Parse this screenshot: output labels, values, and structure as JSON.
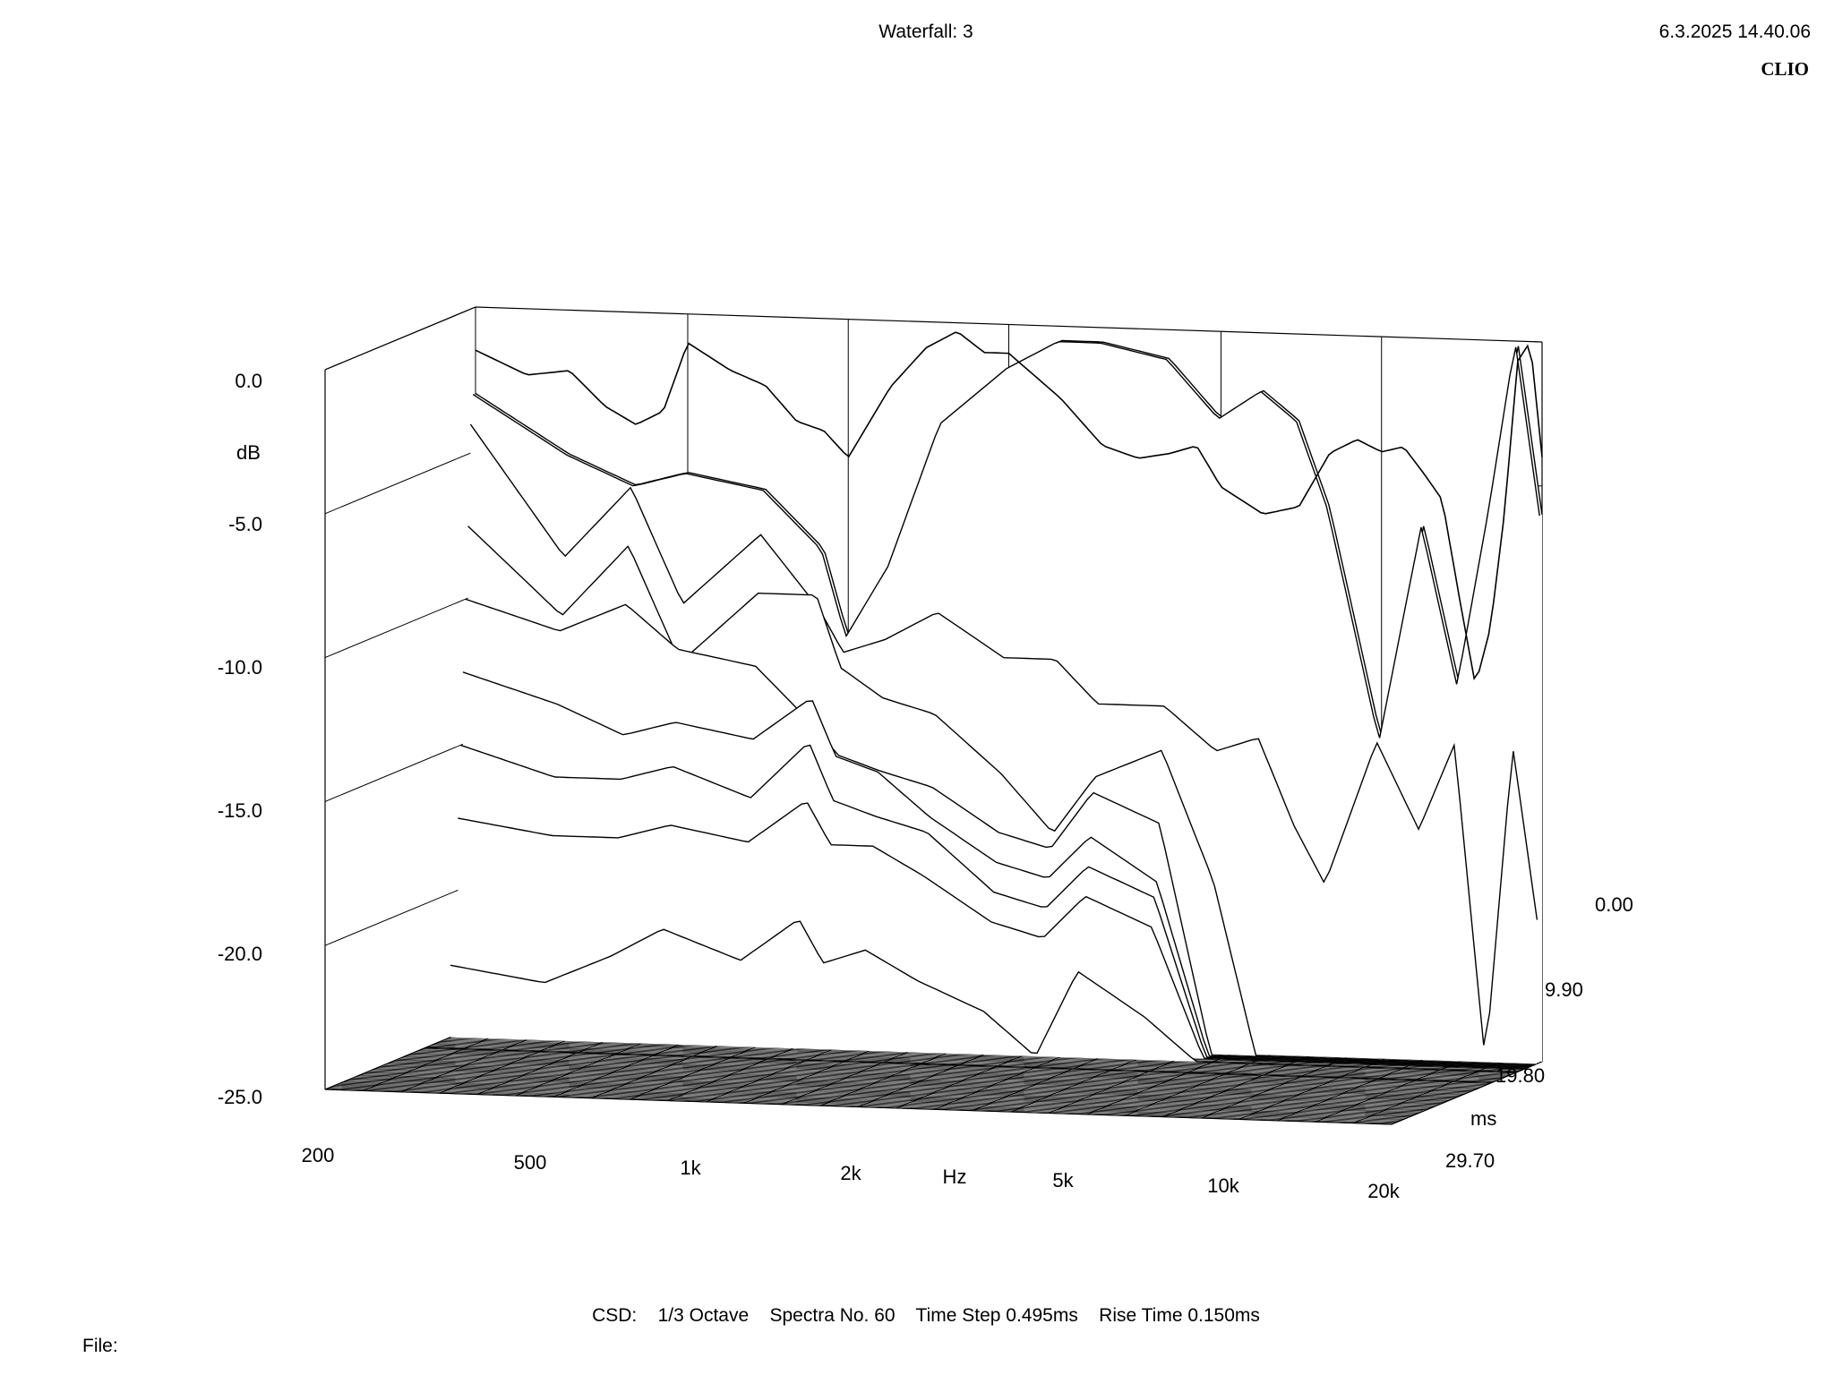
{
  "header": {
    "title": "Waterfall: 3",
    "datetime": "6.3.2025 14.40.06",
    "brand": "CLIO"
  },
  "footer": {
    "settings": "CSD:    1/3 Octave    Spectra No. 60    Time Step 0.495ms    Rise Time 0.150ms",
    "file_label": "File:"
  },
  "colors": {
    "line": "#000000",
    "background": "#ffffff"
  },
  "chart_data": {
    "type": "waterfall",
    "title": "Waterfall: 3",
    "x_axis": {
      "label": "Hz",
      "scale": "log",
      "range": [
        200,
        20000
      ],
      "tick_labels": [
        "200",
        "500",
        "1k",
        "2k",
        "5k",
        "10k",
        "20k"
      ],
      "tick_values": [
        200,
        500,
        1000,
        2000,
        5000,
        10000,
        20000
      ]
    },
    "y_axis": {
      "label": "dB",
      "range": [
        -25,
        0
      ],
      "tick_labels": [
        "0.0",
        "-5.0",
        "-10.0",
        "-15.0",
        "-20.0",
        "-25.0"
      ],
      "tick_values": [
        0,
        -5,
        -10,
        -15,
        -20,
        -25
      ]
    },
    "time_axis": {
      "label": "ms",
      "range": [
        0,
        29.7
      ],
      "tick_labels": [
        "0.00",
        "9.90",
        "19.80",
        "29.70"
      ],
      "tick_values": [
        0,
        9.9,
        19.8,
        29.7
      ]
    },
    "spectra_count": 60,
    "time_step_ms": 0.495,
    "rise_time_ms": 0.15,
    "smoothing": "1/3 Octave",
    "spectrum_t0": {
      "freq_hz": [
        200,
        250,
        300,
        350,
        400,
        450,
        500,
        600,
        700,
        800,
        900,
        1000,
        1200,
        1400,
        1600,
        1800,
        2000,
        2500,
        3000,
        3500,
        4000,
        4500,
        5000,
        6000,
        7000,
        8000,
        9000,
        10000,
        11000,
        12000,
        13000,
        14000,
        15000,
        16000,
        17000,
        18000,
        19000,
        20000
      ],
      "db": [
        -1.5,
        -2.3,
        -2.1,
        -3.3,
        -3.9,
        -3.4,
        -1.0,
        -1.9,
        -2.4,
        -3.6,
        -3.9,
        -4.8,
        -2.3,
        -0.9,
        -0.3,
        -1.0,
        -1.0,
        -2.5,
        -4.1,
        -4.5,
        -4.3,
        -4.0,
        -5.4,
        -6.3,
        -6.0,
        -4.1,
        -3.6,
        -4.0,
        -3.8,
        -4.7,
        -5.6,
        -9.0,
        -12.0,
        -10.0,
        -6.0,
        -0.7,
        0.0,
        -4.0
      ]
    },
    "cumulative_decay": [
      {
        "time_ms": 0.0,
        "freq_hz": [
          200,
          300,
          400,
          500,
          700,
          900,
          1000,
          1200,
          1500,
          2000,
          2500,
          3000,
          4000,
          5000,
          6000,
          7000,
          8000,
          10000,
          12000,
          14000,
          16000,
          18000,
          20000
        ],
        "db": [
          -3.0,
          -5.0,
          -6.0,
          -5.5,
          -6.0,
          -8.0,
          -11.0,
          -8.5,
          -3.5,
          -1.5,
          -0.5,
          -0.5,
          -1.0,
          -3.0,
          -2.0,
          -3.0,
          -6.0,
          -14.0,
          -6.5,
          -12.0,
          -6.0,
          0.0,
          -6.0
        ]
      },
      {
        "time_ms": 0.495,
        "freq_hz": [
          200,
          300,
          400,
          500,
          700,
          900,
          1000,
          1200,
          1500,
          2000,
          2500,
          3000,
          4000,
          5000,
          6000,
          7000,
          8000,
          10000,
          12000,
          14000,
          16000,
          18000,
          20000
        ],
        "db": [
          -3.0,
          -5.0,
          -6.0,
          -5.5,
          -6.0,
          -8.0,
          -11.0,
          -8.5,
          -3.5,
          -1.5,
          -0.5,
          -0.5,
          -1.0,
          -3.0,
          -2.0,
          -3.0,
          -6.0,
          -14.0,
          -6.5,
          -12.0,
          -6.0,
          0.0,
          -6.0
        ]
      },
      {
        "time_ms": 0.99,
        "freq_hz": [
          200,
          300,
          400,
          500,
          700,
          900,
          1000,
          1200,
          1500,
          2000,
          2500,
          3000,
          4000,
          5000,
          6000,
          7000,
          8000,
          10000,
          12000,
          14000,
          16000,
          18000,
          20000
        ],
        "db": [
          -4.0,
          -8.5,
          -6.0,
          -10.0,
          -7.5,
          -10.0,
          -11.5,
          -11.0,
          -10.0,
          -11.5,
          -11.5,
          -13.0,
          -13.0,
          -14.5,
          -14.0,
          -17.0,
          -19.0,
          -14.0,
          -17.0,
          -14.0,
          -25.0,
          -14.0,
          -20.0
        ]
      },
      {
        "time_ms": 1.485,
        "freq_hz": [
          200,
          300,
          400,
          500,
          700,
          900,
          1000,
          1200,
          1500,
          2000,
          2500,
          3000,
          4000,
          5000,
          6000,
          7000,
          8000,
          10000,
          12000,
          14000,
          16000,
          18000,
          20000
        ],
        "db": [
          -7.5,
          -10.5,
          -8.0,
          -12.0,
          -9.5,
          -9.5,
          -12.0,
          -13.0,
          -13.5,
          -15.5,
          -17.5,
          -15.5,
          -14.5,
          -19.0,
          -25.0,
          -25.0,
          -25.0,
          -25.0,
          -25.0,
          -25.0,
          -25.0,
          -25.0,
          -25.0
        ]
      },
      {
        "time_ms": 1.98,
        "freq_hz": [
          200,
          300,
          400,
          500,
          700,
          900,
          1000,
          1200,
          1500,
          2000,
          2500,
          3000,
          4000,
          5000,
          6000,
          7000,
          8000,
          10000,
          12000,
          14000,
          16000,
          18000,
          20000
        ],
        "db": [
          -10.0,
          -11.0,
          -10.0,
          -11.5,
          -12.0,
          -14.0,
          -15.0,
          -15.5,
          -16.0,
          -17.5,
          -18.0,
          -16.0,
          -17.0,
          -25.0,
          -25.0,
          -25.0,
          -25.0,
          -25.0,
          -25.0,
          -25.0,
          -25.0,
          -25.0,
          -25.0
        ]
      },
      {
        "time_ms": 2.475,
        "freq_hz": [
          200,
          300,
          400,
          500,
          700,
          900,
          1000,
          1200,
          1500,
          2000,
          2500,
          3000,
          4000,
          5000,
          6000,
          7000,
          8000,
          10000,
          12000,
          14000,
          16000,
          18000,
          20000
        ],
        "db": [
          -12.5,
          -13.5,
          -14.5,
          -14.0,
          -14.5,
          -13.0,
          -15.0,
          -15.5,
          -17.0,
          -18.5,
          -19.0,
          -17.5,
          -19.0,
          -25.0,
          -25.0,
          -25.0,
          -25.0,
          -25.0,
          -25.0,
          -25.0,
          -25.0,
          -25.0,
          -25.0
        ]
      },
      {
        "time_ms": 2.97,
        "freq_hz": [
          200,
          300,
          400,
          500,
          700,
          900,
          1000,
          1200,
          1500,
          2000,
          2500,
          3000,
          4000,
          5000,
          6000,
          7000,
          8000,
          10000,
          12000,
          14000,
          16000,
          18000,
          20000
        ],
        "db": [
          -15.0,
          -16.0,
          -16.0,
          -15.5,
          -16.5,
          -14.5,
          -16.5,
          -17.0,
          -17.5,
          -19.5,
          -20.0,
          -18.5,
          -19.5,
          -25.0,
          -25.0,
          -25.0,
          -25.0,
          -25.0,
          -25.0,
          -25.0,
          -25.0,
          -25.0,
          -25.0
        ]
      },
      {
        "time_ms": 3.465,
        "freq_hz": [
          200,
          300,
          400,
          500,
          700,
          900,
          1000,
          1200,
          1500,
          2000,
          2500,
          3000,
          4000,
          5000,
          6000,
          7000,
          8000,
          10000,
          12000,
          14000,
          16000,
          18000,
          20000
        ],
        "db": [
          -17.5,
          -18.0,
          -18.0,
          -17.5,
          -18.0,
          -16.5,
          -18.0,
          -18.0,
          -19.0,
          -20.5,
          -21.0,
          -19.5,
          -20.5,
          -25.0,
          -25.0,
          -25.0,
          -25.0,
          -25.0,
          -25.0,
          -25.0,
          -25.0,
          -25.0,
          -25.0
        ]
      },
      {
        "time_ms": 4.95,
        "freq_hz": [
          200,
          300,
          400,
          500,
          700,
          900,
          1000,
          1200,
          1500,
          2000,
          2500,
          3000,
          4000,
          5000,
          6000,
          7000,
          8000,
          10000,
          12000,
          14000,
          16000,
          18000,
          20000
        ],
        "db": [
          -22.5,
          -23.0,
          -22.0,
          -21.0,
          -22.0,
          -20.5,
          -22.0,
          -21.5,
          -22.5,
          -23.5,
          -25.0,
          -22.0,
          -23.5,
          -25.0,
          -25.0,
          -25.0,
          -25.0,
          -25.0,
          -25.0,
          -25.0,
          -25.0,
          -25.0,
          -25.0
        ]
      },
      {
        "time_ms": 9.9,
        "freq_hz": [
          200,
          300,
          400,
          500,
          700,
          900,
          1000,
          1200,
          1500,
          2000,
          2500,
          3000,
          4000,
          5000,
          6000,
          7000,
          8000,
          10000,
          12000,
          14000,
          16000,
          18000,
          20000
        ],
        "db": [
          -25.0,
          -25.0,
          -25.0,
          -25.0,
          -25.0,
          -25.0,
          -25.0,
          -25.0,
          -25.0,
          -25.0,
          -25.0,
          -25.0,
          -25.0,
          -25.0,
          -25.0,
          -25.0,
          -25.0,
          -25.0,
          -25.0,
          -25.0,
          -25.0,
          -25.0,
          -25.0
        ]
      }
    ]
  }
}
